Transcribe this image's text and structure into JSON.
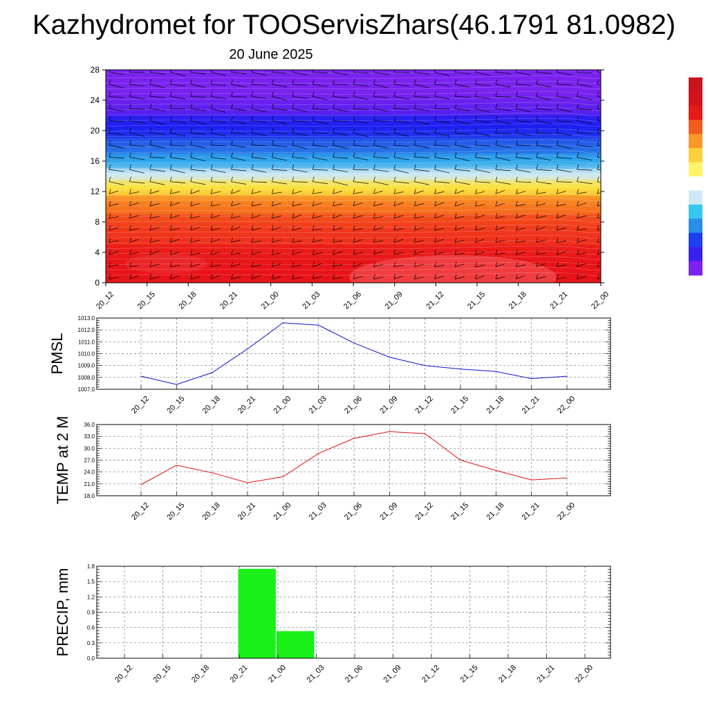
{
  "title": "Kazhydromet for TOOServisZhars(46.1791 81.0982)",
  "subtitle": "20 June 2025",
  "time_labels": [
    "20_12",
    "20_15",
    "20_18",
    "20_21",
    "21_00",
    "21_03",
    "21_06",
    "21_09",
    "21_12",
    "21_15",
    "21_18",
    "21_21",
    "22_00"
  ],
  "chart_data": [
    {
      "type": "heatmap",
      "x": [
        "20_12",
        "20_15",
        "20_18",
        "20_21",
        "21_00",
        "21_03",
        "21_06",
        "21_09",
        "21_12",
        "21_15",
        "21_18",
        "21_21",
        "22_00"
      ],
      "y_ticks": [
        0,
        4,
        8,
        12,
        16,
        20,
        24,
        28
      ],
      "ylim": [
        0,
        28
      ],
      "color_bands": [
        {
          "y": [
            0,
            5
          ],
          "color": "#e8141a"
        },
        {
          "y": [
            5,
            9
          ],
          "color": "#f0381c"
        },
        {
          "y": [
            9,
            11.5
          ],
          "color": "#f77a1f"
        },
        {
          "y": [
            11.5,
            13.5
          ],
          "color": "#fce13c"
        },
        {
          "y": [
            13.5,
            15
          ],
          "color": "#cfe9f4"
        },
        {
          "y": [
            15,
            17
          ],
          "color": "#2ea8ec"
        },
        {
          "y": [
            17,
            19
          ],
          "color": "#2563e8"
        },
        {
          "y": [
            19,
            22
          ],
          "color": "#1e1ff0"
        },
        {
          "y": [
            22,
            28
          ],
          "color": "#7a22ee"
        }
      ],
      "colorbar": [
        "#7a22ee",
        "#3a20f0",
        "#1e40ee",
        "#2a8ee8",
        "#37c6ec",
        "#cfe9f4",
        "#ffffff",
        "#fff36a",
        "#fdd13c",
        "#f99828",
        "#f25c1c",
        "#e51b1a",
        "#d4141c",
        "#c8141e"
      ]
    },
    {
      "type": "line",
      "ylabel": "PMSL",
      "categories": [
        "20_12",
        "20_15",
        "20_18",
        "20_21",
        "21_00",
        "21_03",
        "21_06",
        "21_09",
        "21_12",
        "21_15",
        "21_18",
        "21_21",
        "22_00"
      ],
      "values": [
        1008.1,
        1007.4,
        1008.4,
        1010.4,
        1012.6,
        1012.4,
        1010.9,
        1009.7,
        1009.0,
        1008.7,
        1008.5,
        1007.9,
        1008.1
      ],
      "ylim": [
        1007.0,
        1013.0
      ],
      "ticks": [
        "1007.0",
        "1008.0",
        "1009.0",
        "1010.0",
        "1011.0",
        "1012.0",
        "1013.0"
      ],
      "color": "#1010d0"
    },
    {
      "type": "line",
      "ylabel": "TEMP at 2 M",
      "categories": [
        "20_12",
        "20_15",
        "20_18",
        "20_21",
        "21_00",
        "21_03",
        "21_06",
        "21_09",
        "21_12",
        "21_15",
        "21_18",
        "21_21",
        "22_00"
      ],
      "values": [
        20.8,
        25.7,
        23.8,
        21.3,
        22.8,
        28.7,
        32.5,
        34.2,
        33.7,
        27.0,
        24.4,
        22.0,
        22.5
      ],
      "ylim": [
        18.0,
        36.0
      ],
      "ticks": [
        "18.0",
        "21.0",
        "24.0",
        "27.0",
        "30.0",
        "33.0",
        "36.0"
      ],
      "color": "#e01010"
    },
    {
      "type": "bar",
      "ylabel": "PRECIP, mm",
      "categories": [
        "20_12",
        "20_15",
        "20_18",
        "20_21",
        "21_00",
        "21_03",
        "21_06",
        "21_09",
        "21_12",
        "21_15",
        "21_18",
        "21_21",
        "22_00"
      ],
      "values": [
        0,
        0,
        0,
        1.75,
        0.53,
        0,
        0,
        0,
        0,
        0,
        0,
        0,
        0
      ],
      "ylim": [
        0,
        1.8
      ],
      "ticks": [
        "0.0",
        "0.3",
        "0.6",
        "0.9",
        "1.2",
        "1.5",
        "1.8"
      ],
      "color": "#18f018"
    }
  ]
}
